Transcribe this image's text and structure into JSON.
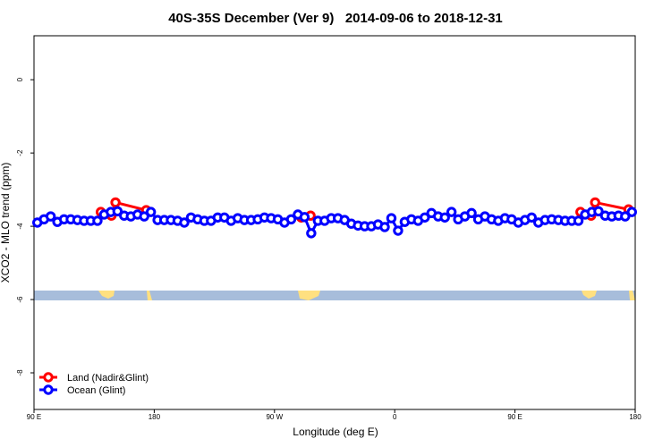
{
  "chart_data": {
    "type": "line",
    "title": "40S-35S December (Ver 9)   2014-09-06 to 2018-12-31",
    "xlabel": "Longitude (deg E)",
    "ylabel": "XCO2 - MLO trend (ppm)",
    "xlim": [
      90,
      540
    ],
    "ylim": [
      -9,
      1.2
    ],
    "xticks": [
      {
        "value": 90,
        "label": "90 E"
      },
      180,
      {
        "value": 270,
        "label": "90 W"
      },
      {
        "value": 360,
        "label": "0"
      },
      {
        "value": 450,
        "label": "90 E"
      },
      {
        "value": 540,
        "label": "180"
      }
    ],
    "yticks": [
      0,
      -2,
      -4,
      -6,
      -8
    ],
    "legend": "bottom-left",
    "series": [
      {
        "name": "Land (Nadir&Glint)",
        "color": "#ff0000",
        "x": [
          140,
          148,
          151,
          174,
          232,
          290,
          297,
          400,
          499,
          507,
          510,
          535
        ],
        "values": [
          -3.61,
          -3.71,
          -3.35,
          -3.56,
          null,
          -3.76,
          -3.71,
          null,
          -3.61,
          -3.71,
          -3.35,
          -3.54
        ]
      },
      {
        "name": "Ocean (Glint)",
        "color": "#0000ff",
        "x": [
          92.5,
          97.5,
          102.5,
          107.5,
          112.5,
          117.5,
          122.5,
          127.5,
          132.5,
          137.5,
          142.5,
          147.5,
          152.5,
          157.5,
          162.5,
          167.5,
          172.5,
          177.5,
          182.5,
          187.5,
          192.5,
          197.5,
          202.5,
          207.5,
          212.5,
          217.5,
          222.5,
          227.5,
          232.5,
          237.5,
          242.5,
          247.5,
          252.5,
          257.5,
          262.5,
          267.5,
          272.5,
          277.5,
          282.5,
          287.5,
          292.5,
          297.5,
          302.5,
          307.5,
          312.5,
          317.5,
          322.5,
          327.5,
          332.5,
          337.5,
          342.5,
          347.5,
          352.5,
          357.5,
          362.5,
          367.5,
          372.5,
          377.5,
          382.5,
          387.5,
          392.5,
          397.5,
          402.5,
          407.5,
          412.5,
          417.5,
          422.5,
          427.5,
          432.5,
          437.5,
          442.5,
          447.5,
          452.5,
          457.5,
          462.5,
          467.5,
          472.5,
          477.5,
          482.5,
          487.5,
          492.5,
          497.5,
          502.5,
          507.5,
          512.5,
          517.5,
          522.5,
          527.5,
          532.5,
          537.5
        ],
        "values": [
          -3.9,
          -3.81,
          -3.73,
          -3.88,
          -3.81,
          -3.81,
          -3.83,
          -3.85,
          -3.85,
          -3.85,
          -3.68,
          -3.61,
          -3.59,
          -3.71,
          -3.73,
          -3.68,
          -3.73,
          -3.61,
          -3.83,
          -3.83,
          -3.83,
          -3.85,
          -3.9,
          -3.76,
          -3.81,
          -3.85,
          -3.85,
          -3.76,
          -3.76,
          -3.85,
          -3.78,
          -3.83,
          -3.83,
          -3.81,
          -3.76,
          -3.78,
          -3.81,
          -3.9,
          -3.81,
          -3.68,
          -3.75,
          -4.19,
          -3.85,
          -3.85,
          -3.78,
          -3.78,
          -3.83,
          -3.93,
          -3.98,
          -4.0,
          -4.0,
          -3.95,
          -4.02,
          -3.78,
          -4.12,
          -3.88,
          -3.81,
          -3.85,
          -3.76,
          -3.64,
          -3.73,
          -3.76,
          -3.61,
          -3.81,
          -3.73,
          -3.64,
          -3.81,
          -3.73,
          -3.81,
          -3.85,
          -3.78,
          -3.81,
          -3.9,
          -3.83,
          -3.76,
          -3.9,
          -3.83,
          -3.81,
          -3.83,
          -3.85,
          -3.85,
          -3.85,
          -3.68,
          -3.61,
          -3.59,
          -3.71,
          -3.73,
          -3.71,
          -3.73,
          -3.61
        ]
      }
    ]
  }
}
